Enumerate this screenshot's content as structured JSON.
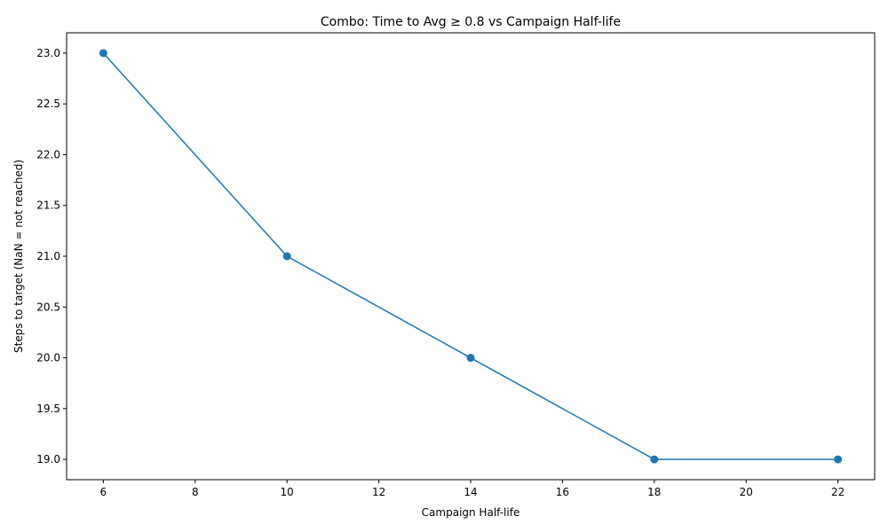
{
  "chart_data": {
    "type": "line",
    "title": "Combo: Time to Avg ≥ 0.8 vs Campaign Half-life",
    "xlabel": "Campaign Half-life",
    "ylabel": "Steps to target (NaN = not reached)",
    "x": [
      6,
      10,
      14,
      18,
      22
    ],
    "series": [
      {
        "values": [
          23,
          21,
          20,
          19,
          19
        ]
      }
    ],
    "xlim": [
      5.2,
      22.8
    ],
    "ylim": [
      18.8,
      23.2
    ],
    "xticks": [
      6,
      8,
      10,
      12,
      14,
      16,
      18,
      20,
      22
    ],
    "yticks": [
      19.0,
      19.5,
      20.0,
      20.5,
      21.0,
      21.5,
      22.0,
      22.5,
      23.0
    ],
    "grid": false,
    "legend": "none",
    "marker": "circle",
    "colors": {
      "line": "#1f77b4"
    }
  }
}
